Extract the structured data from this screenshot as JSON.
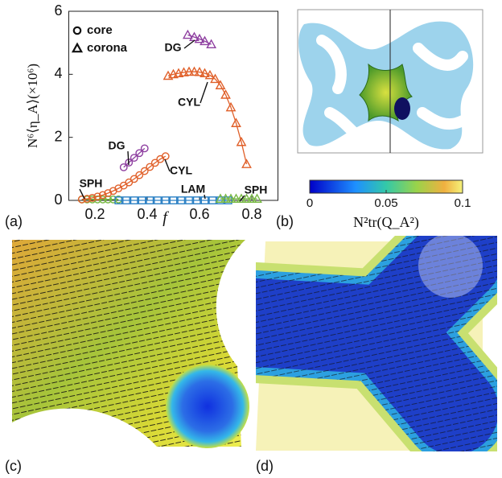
{
  "chart_data": {
    "type": "scatter",
    "xlabel": "f",
    "ylabel": "N⁶⟨η_A⟩(×10⁶)",
    "xlim": [
      0.1,
      0.9
    ],
    "xticks": [
      0.2,
      0.4,
      0.6,
      0.8
    ],
    "ylim": [
      0,
      6
    ],
    "yticks": [
      0,
      2,
      4,
      6
    ],
    "legend": [
      {
        "label": "core",
        "marker": "circle"
      },
      {
        "label": "corona",
        "marker": "triangle"
      }
    ],
    "series": [
      {
        "marker": "circle",
        "color": "#77b843",
        "x": [
          0.15,
          0.17,
          0.19,
          0.21,
          0.23,
          0.25,
          0.27,
          0.29
        ],
        "values": [
          0.03,
          0.03,
          0.03,
          0.03,
          0.03,
          0.03,
          0.03,
          0.03
        ]
      },
      {
        "marker": "circle",
        "color": "#e0602a",
        "x": [
          0.15,
          0.17,
          0.19,
          0.21,
          0.23,
          0.25,
          0.27,
          0.29,
          0.31,
          0.33,
          0.35,
          0.37,
          0.39,
          0.41,
          0.43,
          0.45,
          0.47
        ],
        "values": [
          0.03,
          0.05,
          0.08,
          0.12,
          0.17,
          0.23,
          0.3,
          0.38,
          0.47,
          0.57,
          0.68,
          0.8,
          0.93,
          1.06,
          1.19,
          1.31,
          1.4
        ]
      },
      {
        "marker": "circle",
        "color": "#8e3fa0",
        "x": [
          0.31,
          0.33,
          0.35,
          0.37,
          0.39
        ],
        "values": [
          1.05,
          1.2,
          1.35,
          1.5,
          1.65
        ]
      },
      {
        "marker": "square",
        "color": "#2a7fc4",
        "x": [
          0.29,
          0.32,
          0.35,
          0.38,
          0.41,
          0.44,
          0.47,
          0.5,
          0.53,
          0.56,
          0.59,
          0.62,
          0.65,
          0.68,
          0.71
        ],
        "values": [
          0,
          0,
          0,
          0,
          0,
          0,
          0,
          0,
          0,
          0,
          0,
          0,
          0,
          0,
          0
        ]
      },
      {
        "marker": "triangle",
        "color": "#77b843",
        "x": [
          0.68,
          0.7,
          0.72,
          0.74,
          0.76,
          0.78,
          0.8,
          0.82
        ],
        "values": [
          0.05,
          0.05,
          0.05,
          0.05,
          0.05,
          0.05,
          0.05,
          0.05
        ]
      },
      {
        "marker": "triangle",
        "color": "#e0602a",
        "x": [
          0.48,
          0.5,
          0.52,
          0.54,
          0.56,
          0.58,
          0.6,
          0.62,
          0.64,
          0.66,
          0.68,
          0.7,
          0.72,
          0.74,
          0.76,
          0.78
        ],
        "values": [
          3.95,
          4.0,
          4.03,
          4.06,
          4.08,
          4.08,
          4.07,
          4.03,
          3.97,
          3.85,
          3.65,
          3.35,
          2.95,
          2.45,
          1.85,
          1.15
        ]
      },
      {
        "marker": "triangle",
        "color": "#8e3fa0",
        "x": [
          0.555,
          0.58,
          0.6,
          0.62,
          0.645
        ],
        "values": [
          5.25,
          5.18,
          5.12,
          5.05,
          4.95
        ]
      }
    ],
    "annotations": [
      "DG",
      "CYL",
      "DG",
      "CYL",
      "SPH",
      "LAM",
      "SPH"
    ]
  },
  "colorbar": {
    "label": "N²tr(Q_A²)",
    "lim": [
      0,
      0.1
    ],
    "ticks": [
      0,
      0.05,
      0.1
    ]
  },
  "panel_labels": [
    "(a)",
    "(b)",
    "(c)",
    "(d)"
  ]
}
